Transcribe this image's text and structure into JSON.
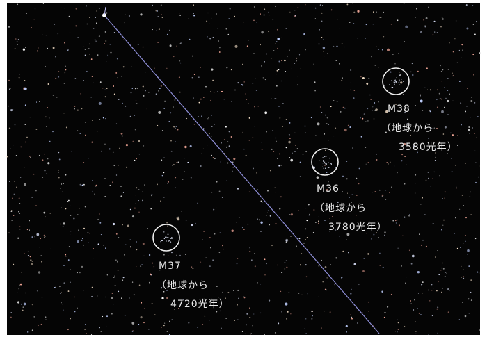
{
  "clusters": [
    {
      "name": "M38",
      "line1": "（地球から",
      "line2": "3580光年）"
    },
    {
      "name": "M36",
      "line1": "（地球から",
      "line2": "3780光年）"
    },
    {
      "name": "M37",
      "line1": "（地球から",
      "line2": "4720光年）"
    }
  ]
}
